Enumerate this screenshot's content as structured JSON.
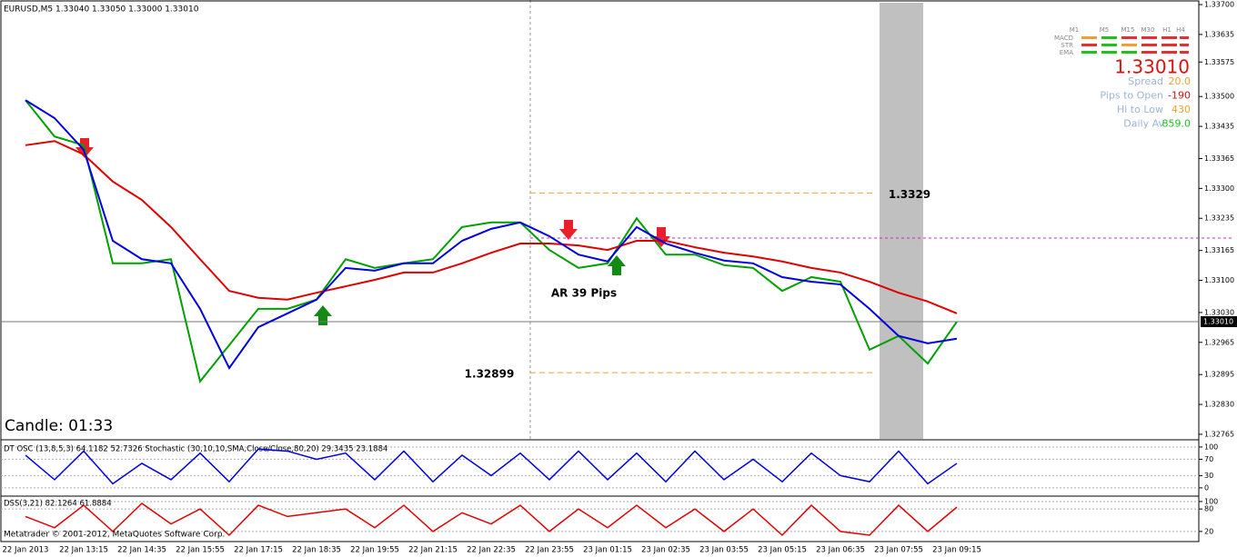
{
  "chart_data": [
    {
      "type": "line",
      "title": "EURUSD,M5  1.33040 1.33050 1.33000 1.33010",
      "categories": [
        "22 Jan 2013",
        null,
        "22 Jan 13:15",
        null,
        "22 Jan 14:35",
        null,
        "22 Jan 15:55",
        null,
        "22 Jan 17:15",
        null,
        "22 Jan 18:35",
        null,
        "22 Jan 19:55",
        null,
        "22 Jan 21:15",
        null,
        "22 Jan 22:35",
        null,
        "22 Jan 23:55",
        null,
        "23 Jan 01:15",
        null,
        "23 Jan 02:35",
        null,
        "23 Jan 03:55",
        null,
        "23 Jan 05:15",
        null,
        "23 Jan 06:35",
        null,
        "23 Jan 07:55",
        null,
        "23 Jan 09:15"
      ],
      "series": [
        {
          "color": "#00a000",
          "values": [
            1.33492,
            1.33413,
            1.33394,
            1.33137,
            1.33137,
            1.33146,
            1.3288,
            1.32959,
            1.33038,
            1.33038,
            1.33058,
            1.33146,
            1.33127,
            1.33137,
            1.33146,
            1.33216,
            1.33226,
            1.33226,
            1.33166,
            1.33127,
            1.33137,
            1.33235,
            1.33156,
            1.33156,
            1.33133,
            1.33127,
            1.33077,
            1.33107,
            1.33097,
            1.32949,
            1.32979,
            1.32919,
            1.3301
          ]
        },
        {
          "color": "#e00000",
          "values": [
            1.33394,
            1.33403,
            1.33374,
            1.33315,
            1.33275,
            1.33216,
            1.33146,
            1.33077,
            1.33062,
            1.33058,
            1.33073,
            1.33087,
            1.33101,
            1.33117,
            1.33117,
            1.33137,
            1.3316,
            1.3318,
            1.3318,
            1.33176,
            1.33166,
            1.33186,
            1.33186,
            1.33172,
            1.3316,
            1.33152,
            1.33141,
            1.33127,
            1.33117,
            1.33097,
            1.33073,
            1.33054,
            1.33028
          ]
        },
        {
          "color": "#0000e0",
          "values": [
            1.33492,
            1.33453,
            1.33384,
            1.33186,
            1.33146,
            1.33137,
            1.33038,
            1.32909,
            1.32998,
            1.33028,
            1.33058,
            1.33127,
            1.33121,
            1.33137,
            1.33137,
            1.33186,
            1.33212,
            1.33226,
            1.33196,
            1.33156,
            1.33141,
            1.33216,
            1.3318,
            1.3316,
            1.33143,
            1.33137,
            1.33107,
            1.33097,
            1.33091,
            1.33038,
            1.32979,
            1.32963,
            1.32973
          ]
        }
      ],
      "ylim": [
        1.32755,
        1.3371
      ],
      "yticks": [
        {
          "value": 1.337,
          "label": "1.33700"
        },
        {
          "value": 1.33635,
          "label": "1.33635"
        },
        {
          "value": 1.33575,
          "label": "1.33575"
        },
        {
          "value": 1.335,
          "label": "1.33500"
        },
        {
          "value": 1.33435,
          "label": "1.33435"
        },
        {
          "value": 1.33365,
          "label": "1.33365"
        },
        {
          "value": 1.333,
          "label": "1.33300"
        },
        {
          "value": 1.33235,
          "label": "1.33235"
        },
        {
          "value": 1.33165,
          "label": "1.33165"
        },
        {
          "value": 1.331,
          "label": "1.33100"
        },
        {
          "value": 1.3303,
          "label": "1.33030"
        },
        {
          "value": 1.32965,
          "label": "1.32965"
        },
        {
          "value": 1.32895,
          "label": "1.32895"
        },
        {
          "value": 1.3283,
          "label": "1.32830"
        },
        {
          "value": 1.32765,
          "label": "1.32765"
        }
      ],
      "current": {
        "value": 1.3301,
        "label": "1.33010"
      },
      "levels": [
        1.3329,
        1.32899
      ],
      "level_color": "#f0a030",
      "alert_level": 1.33192,
      "annotation": "AR 39 Pips",
      "timer": "Candle:  01:33",
      "grid": false
    },
    {
      "type": "line",
      "title": "DT OSC (13,8,5,3) 64.1182 52.7326  Stochastic (30,10,10,SMA,Close/Close,80,20) 29.3435 23.1884",
      "series": [
        {
          "color": "#0000e0",
          "values": [
            80,
            20,
            90,
            10,
            60,
            20,
            85,
            15,
            95,
            90,
            70,
            85,
            20,
            90,
            15,
            80,
            30,
            85,
            20,
            90,
            20,
            85,
            15,
            90,
            20,
            70,
            15,
            85,
            30,
            15,
            90,
            10,
            60
          ]
        }
      ],
      "ylim": [
        -18,
        111
      ],
      "yticks": [
        0,
        30,
        70,
        100
      ]
    },
    {
      "type": "line",
      "title": "DSS(3,21) 82.1264 61.8884",
      "series": [
        {
          "color": "#e00000",
          "values": [
            60,
            30,
            90,
            20,
            95,
            40,
            80,
            10,
            90,
            60,
            70,
            80,
            30,
            90,
            20,
            70,
            40,
            90,
            20,
            80,
            30,
            90,
            30,
            80,
            20,
            80,
            10,
            90,
            20,
            10,
            90,
            20,
            85
          ]
        }
      ],
      "ylim": [
        -7,
        112
      ],
      "yticks": [
        20,
        80,
        100
      ]
    }
  ],
  "info": {
    "timeframes": [
      "M1",
      "M5",
      "M15",
      "M30",
      "H1",
      "H4"
    ],
    "rows": [
      "MACD",
      "STR",
      "EMA"
    ],
    "price": "1.33010",
    "stats": [
      [
        "Spread",
        "20.0"
      ],
      [
        "Pips to Open",
        "-190"
      ],
      [
        "Hi to Low",
        "430"
      ],
      [
        "Daily Av",
        "859.0"
      ]
    ]
  },
  "copyright": "Metatrader © 2001-2012, MetaQuotes Software Corp."
}
